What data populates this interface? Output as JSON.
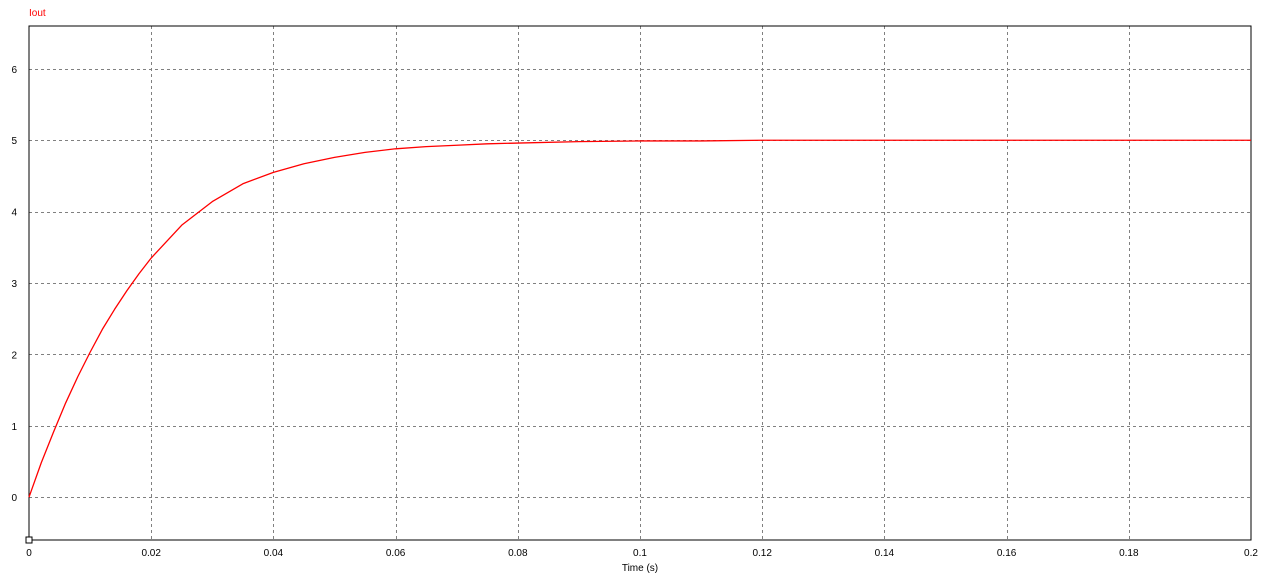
{
  "chart_data": {
    "type": "line",
    "xlabel": "Time (s)",
    "ylabel": "",
    "xlim": [
      0,
      0.2
    ],
    "ylim": [
      -0.6,
      6.6
    ],
    "x_ticks": [
      0,
      0.02,
      0.04,
      0.06,
      0.08,
      0.1,
      0.12,
      0.14,
      0.16,
      0.18,
      0.2
    ],
    "x_tick_labels": [
      "0",
      "0.02",
      "0.04",
      "0.06",
      "0.08",
      "0.1",
      "0.12",
      "0.14",
      "0.16",
      "0.18",
      "0.2"
    ],
    "y_ticks": [
      0,
      1,
      2,
      3,
      4,
      5,
      6
    ],
    "y_tick_labels": [
      "0",
      "1",
      "2",
      "3",
      "4",
      "5",
      "6"
    ],
    "grid": true,
    "legend": "top-left",
    "series": [
      {
        "name": "Iout",
        "color": "#ff0000",
        "x": [
          0,
          0.002,
          0.004,
          0.006,
          0.008,
          0.01,
          0.012,
          0.014,
          0.016,
          0.018,
          0.02,
          0.025,
          0.03,
          0.035,
          0.04,
          0.045,
          0.05,
          0.055,
          0.06,
          0.065,
          0.07,
          0.075,
          0.08,
          0.09,
          0.1,
          0.11,
          0.12,
          0.13,
          0.14,
          0.15,
          0.16,
          0.17,
          0.18,
          0.19,
          0.2
        ],
        "y": [
          0.0,
          0.48,
          0.91,
          1.32,
          1.69,
          2.03,
          2.35,
          2.63,
          2.89,
          3.13,
          3.35,
          3.81,
          4.14,
          4.39,
          4.55,
          4.67,
          4.76,
          4.83,
          4.88,
          4.91,
          4.93,
          4.95,
          4.96,
          4.98,
          4.99,
          4.99,
          5.0,
          5.0,
          5.0,
          5.0,
          5.0,
          5.0,
          5.0,
          5.0,
          5.0
        ]
      }
    ]
  }
}
